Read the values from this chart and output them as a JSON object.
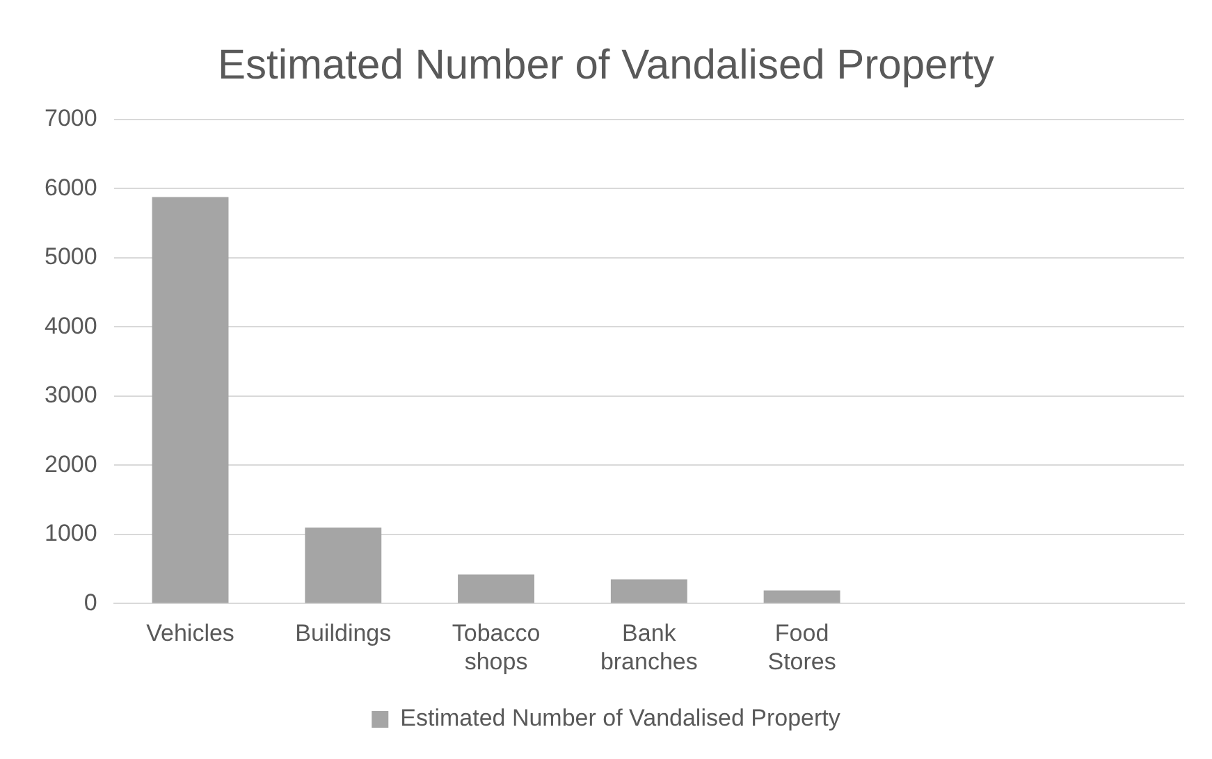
{
  "chart_data": {
    "type": "bar",
    "title": "Estimated Number of Vandalised Property",
    "categories": [
      "Vehicles",
      "Buildings",
      "Tobacco shops",
      "Bank branches",
      "Food Stores",
      null,
      null
    ],
    "series": [
      {
        "name": "Estimated Number of Vandalised Property",
        "color": "#a5a5a5",
        "values": [
          5880,
          1100,
          420,
          350,
          190,
          null,
          null
        ]
      }
    ],
    "ylim": [
      0,
      7000
    ],
    "yticks": [
      0,
      1000,
      2000,
      3000,
      4000,
      5000,
      6000,
      7000
    ],
    "grid": "y",
    "legend": "bottom"
  }
}
